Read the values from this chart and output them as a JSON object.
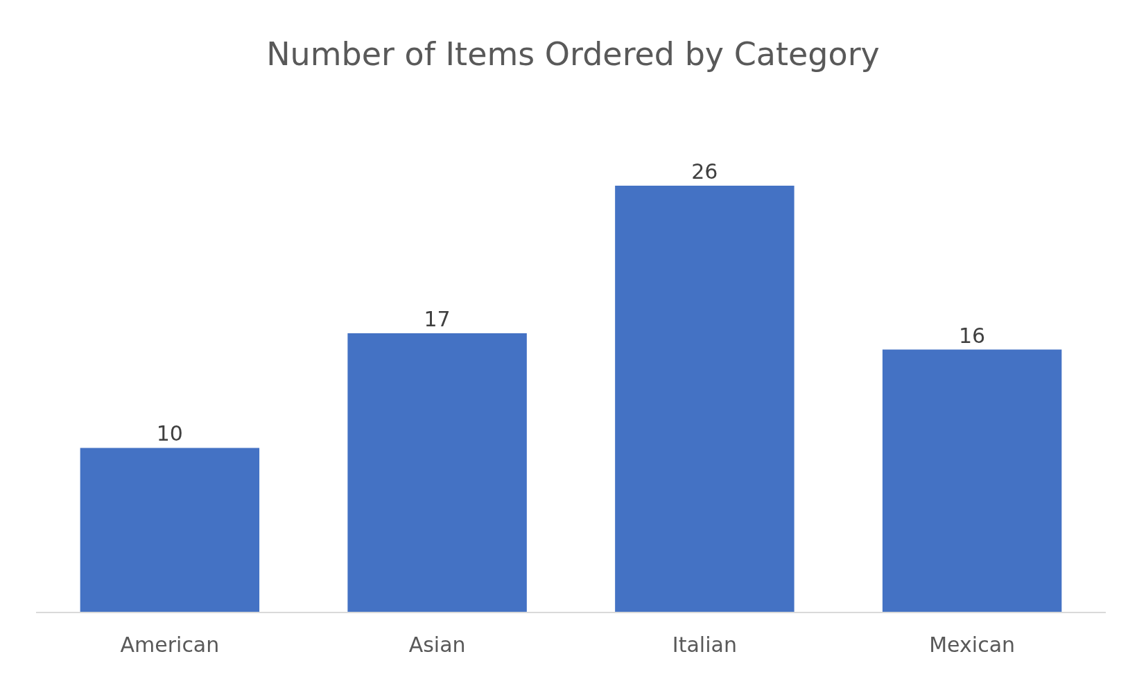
{
  "chart_data": {
    "type": "bar",
    "title": "Number of Items Ordered by Category",
    "categories": [
      "American",
      "Asian",
      "Italian",
      "Mexican"
    ],
    "values": [
      10,
      17,
      26,
      16
    ],
    "color": "#4472c4",
    "data_labels": true,
    "tick_labels": "x",
    "legend": false
  }
}
